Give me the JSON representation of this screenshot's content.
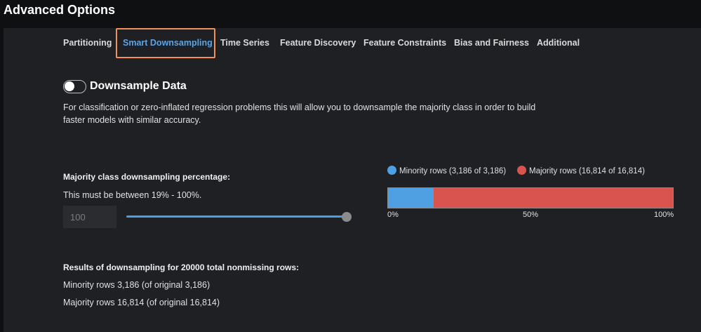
{
  "page": {
    "title": "Advanced Options"
  },
  "tabs": [
    {
      "label": "Partitioning",
      "active": false
    },
    {
      "label": "Smart Downsampling",
      "active": true
    },
    {
      "label": "Time Series",
      "active": false
    },
    {
      "label": "Feature Discovery",
      "active": false
    },
    {
      "label": "Feature Constraints",
      "active": false
    },
    {
      "label": "Bias and Fairness",
      "active": false
    },
    {
      "label": "Additional",
      "active": false
    }
  ],
  "downsample": {
    "toggle_label": "Downsample Data",
    "enabled": false,
    "description": "For classification or zero-inflated regression problems this will allow you to downsample the majority class in order to build faster models with similar accuracy."
  },
  "percentage": {
    "label": "Majority class downsampling percentage:",
    "hint": "This must be between 19% - 100%.",
    "value": "100",
    "min": 19,
    "max": 100
  },
  "distribution": {
    "legend": [
      {
        "label": "Minority rows (3,186 of 3,186)",
        "color": "#4f9fe3"
      },
      {
        "label": "Majority rows (16,814 of 16,814)",
        "color": "#d9534f"
      }
    ],
    "segments": [
      {
        "name": "minority",
        "value": 3186,
        "color": "#4f9fe3"
      },
      {
        "name": "majority",
        "value": 16814,
        "color": "#d9534f"
      }
    ],
    "axis_labels": [
      "0%",
      "50%",
      "100%"
    ]
  },
  "results": {
    "title": "Results of downsampling for 20000 total nonmissing rows:",
    "minority_line": "Minority rows 3,186 (of original 3,186)",
    "majority_line": "Majority rows 16,814 (of original 16,814)"
  }
}
